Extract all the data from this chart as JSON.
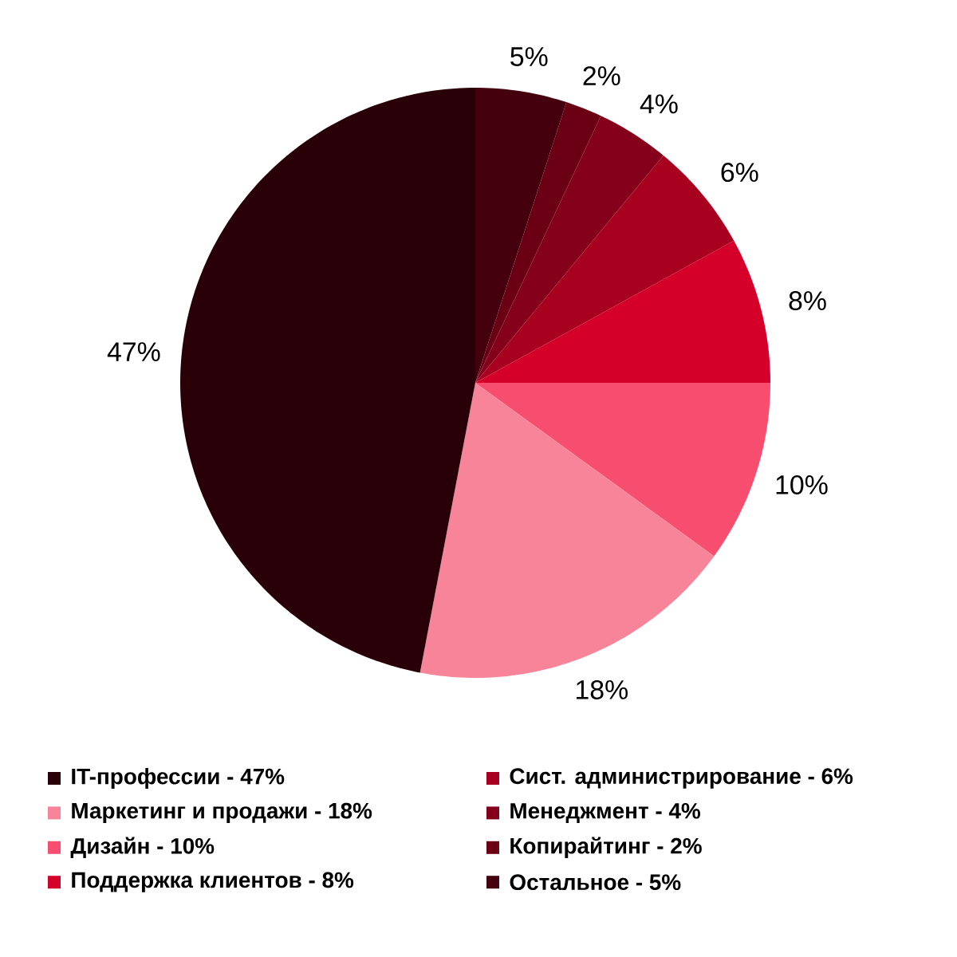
{
  "chart_data": {
    "type": "pie",
    "categories": [
      "IT-профессии - 47%",
      "Маркетинг и продажи - 18%",
      "Дизайн - 10%",
      "Поддержка клиентов - 8%",
      "Сист. администрирование - 6%",
      "Менеджмент - 4%",
      "Копирайтинг - 2%",
      "Остальное - 5%"
    ],
    "values": [
      47,
      18,
      10,
      8,
      6,
      4,
      2,
      5
    ],
    "colors": [
      "#2a0008",
      "#f8849a",
      "#f74d6e",
      "#d5002a",
      "#a8001f",
      "#85001a",
      "#6b0015",
      "#45000e"
    ],
    "value_labels": [
      "47%",
      "18%",
      "10%",
      "8%",
      "6%",
      "4%",
      "2%",
      "5%"
    ],
    "legend": "bottom"
  }
}
